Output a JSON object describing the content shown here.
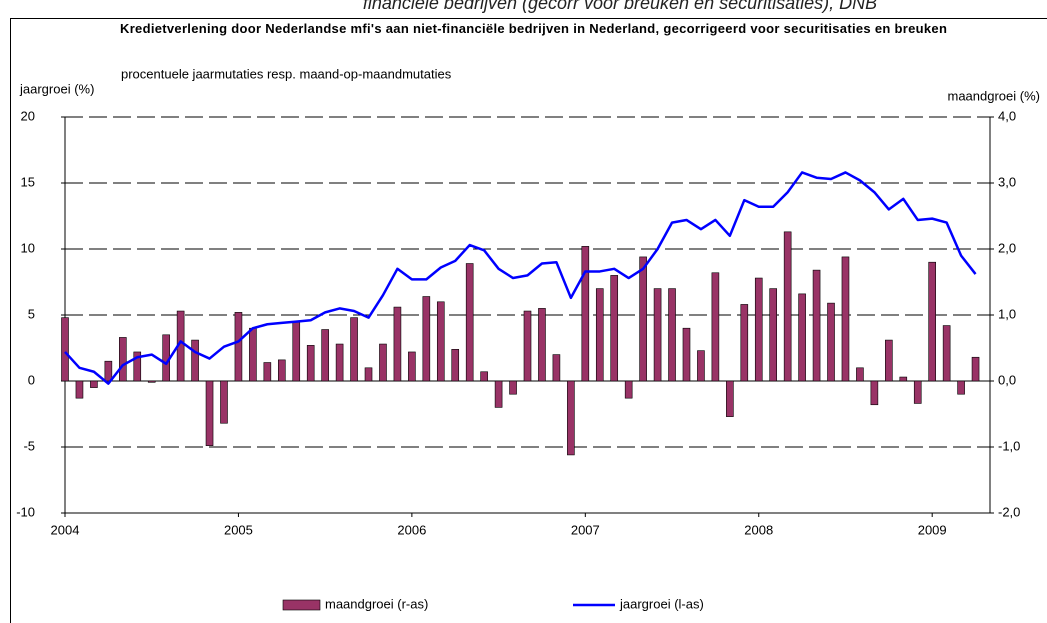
{
  "caption": "financiële bedrijven (gecorr voor breuken en securitisaties), DNB",
  "chart_data": {
    "type": "bar",
    "title": "Kredietverlening door Nederlandse mfi's aan niet-financiële bedrijven in Nederland, gecorrigeerd voor securitisaties en breuken",
    "subtitle": "procentuele jaarmutaties resp. maand-op-maandmutaties",
    "ylabel": "jaargroei (%)",
    "y2label": "maandgroei (%)",
    "categories": [
      "2004",
      null,
      null,
      null,
      null,
      null,
      null,
      null,
      null,
      null,
      null,
      null,
      "2005",
      null,
      null,
      null,
      null,
      null,
      null,
      null,
      null,
      null,
      null,
      null,
      "2006",
      null,
      null,
      null,
      null,
      null,
      null,
      null,
      null,
      null,
      null,
      null,
      "2007",
      null,
      null,
      null,
      null,
      null,
      null,
      null,
      null,
      null,
      null,
      null,
      "2008",
      null,
      null,
      null,
      null,
      null,
      null,
      null,
      null,
      null,
      null,
      null,
      "2009",
      null,
      null,
      null
    ],
    "series": [
      {
        "name": "maandgroei (r-as)",
        "type": "bar",
        "axis": "y2",
        "color": "#993366",
        "values": [
          0.96,
          -0.26,
          -0.1,
          0.3,
          0.66,
          0.44,
          -0.02,
          0.7,
          1.06,
          0.62,
          -0.98,
          -0.64,
          1.04,
          0.8,
          0.28,
          0.32,
          0.9,
          0.54,
          0.78,
          0.56,
          0.96,
          0.2,
          0.56,
          1.12,
          0.44,
          1.28,
          1.2,
          0.48,
          1.78,
          0.14,
          -0.4,
          -0.2,
          1.06,
          1.1,
          0.4,
          -1.12,
          2.04,
          1.4,
          1.6,
          -0.26,
          1.88,
          1.4,
          1.4,
          0.8,
          0.46,
          1.64,
          -0.54,
          1.16,
          1.56,
          1.4,
          2.26,
          1.32,
          1.68,
          1.18,
          1.88,
          0.2,
          -0.36,
          0.62,
          0.06,
          -0.34,
          1.8,
          0.84,
          -0.2,
          0.36
        ]
      },
      {
        "name": "jaargroei (l-as)",
        "type": "line",
        "color": "#0000ff",
        "values": [
          2.2,
          1.0,
          0.7,
          -0.2,
          1.2,
          1.8,
          2.0,
          1.3,
          3.0,
          2.2,
          1.7,
          2.6,
          3.0,
          4.0,
          4.3,
          4.4,
          4.5,
          4.6,
          5.2,
          5.5,
          5.3,
          4.8,
          6.5,
          8.5,
          7.7,
          7.7,
          8.6,
          9.1,
          10.3,
          9.9,
          8.5,
          7.8,
          8.0,
          8.9,
          9.0,
          6.3,
          8.3,
          8.3,
          8.5,
          7.8,
          8.5,
          10.0,
          12.0,
          12.2,
          11.5,
          12.2,
          11.0,
          13.7,
          13.2,
          13.2,
          14.3,
          15.8,
          15.4,
          15.3,
          15.8,
          15.2,
          14.3,
          13.0,
          13.8,
          12.2,
          12.3,
          12.0,
          9.5,
          8.1
        ]
      }
    ],
    "ylim": [
      -10,
      20
    ],
    "yticks": [
      -10,
      -5,
      0,
      5,
      10,
      15,
      20
    ],
    "y2lim": [
      -2,
      4
    ],
    "y2ticks": [
      {
        "value": -2,
        "label": "-2,0"
      },
      {
        "value": -1,
        "label": "-1,0"
      },
      {
        "value": 0,
        "label": "0,0"
      },
      {
        "value": 1,
        "label": "1,0"
      },
      {
        "value": 2,
        "label": "2,0"
      },
      {
        "value": 3,
        "label": "3,0"
      },
      {
        "value": 4,
        "label": "4,0"
      }
    ],
    "grid": true
  }
}
